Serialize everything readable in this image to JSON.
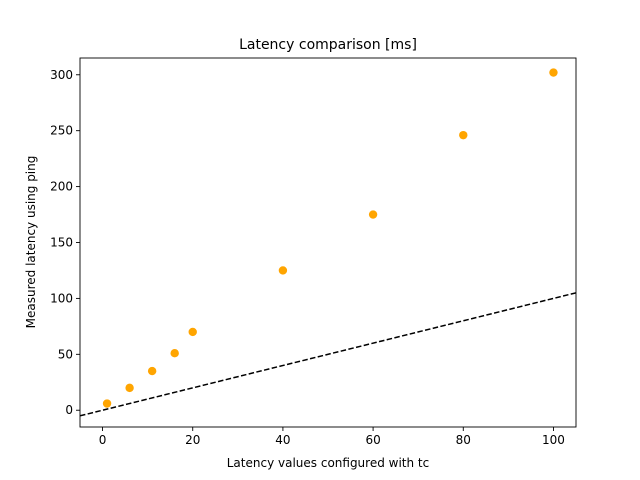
{
  "chart_data": {
    "type": "scatter",
    "title": "Latency comparison [ms]",
    "xlabel": "Latency values configured with tc",
    "ylabel": "Measured latency using ping",
    "xlim": [
      -5,
      105
    ],
    "ylim": [
      -15,
      315
    ],
    "xticks": [
      0,
      20,
      40,
      60,
      80,
      100
    ],
    "yticks": [
      0,
      50,
      100,
      150,
      200,
      250,
      300
    ],
    "grid": false,
    "series": [
      {
        "color": "#ffa500",
        "x": [
          1,
          6,
          11,
          16,
          20,
          40,
          60,
          80,
          100
        ],
        "y": [
          6,
          20,
          35,
          51,
          70,
          125,
          175,
          246,
          302
        ]
      }
    ],
    "reference_line": {
      "style": "dashed",
      "color": "#000000",
      "x": [
        -5,
        105
      ],
      "y": [
        -5,
        105
      ]
    }
  }
}
